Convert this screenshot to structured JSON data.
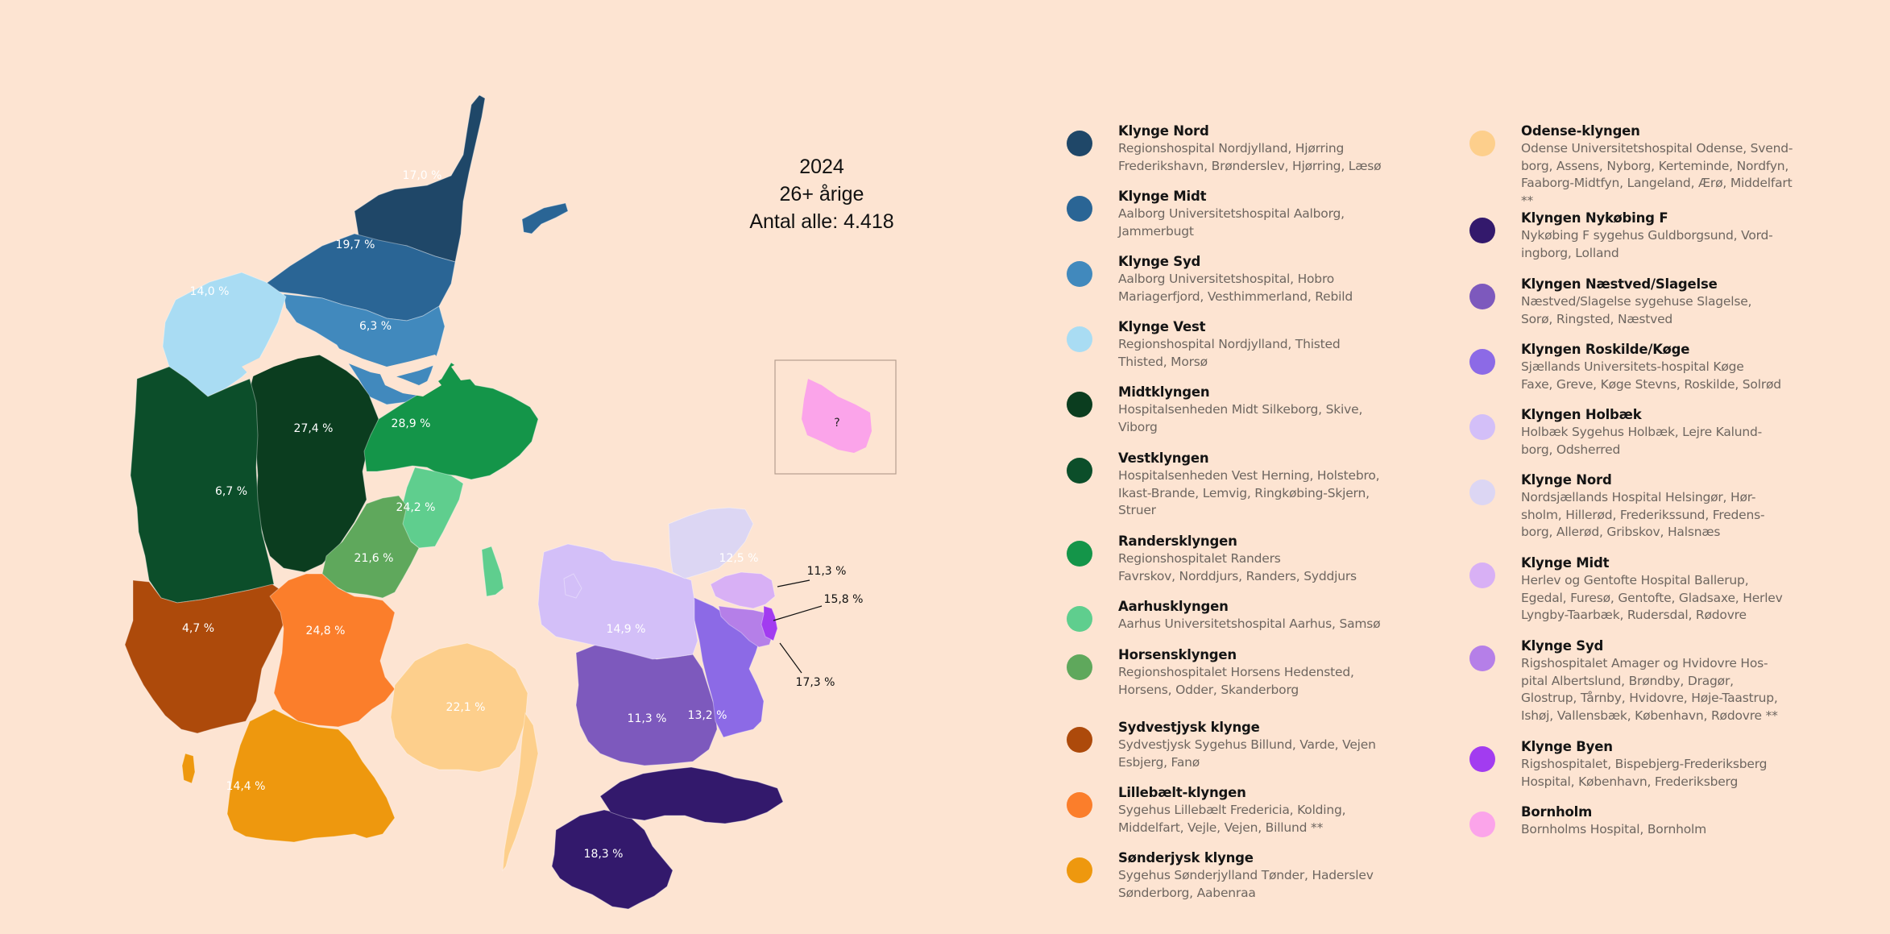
{
  "title": {
    "year": "2024",
    "group": "26+ årige",
    "count": "Antal alle: 4.418"
  },
  "map": {
    "regions": [
      {
        "key": "klynge-nord-jylland",
        "label": "17,0 %",
        "color": "#1f4768"
      },
      {
        "key": "klynge-midt-jylland",
        "label": "19,7 %",
        "color": "#2a6595"
      },
      {
        "key": "klynge-syd-jylland",
        "label": "6,3 %",
        "color": "#4189bd"
      },
      {
        "key": "klynge-vest",
        "label": "14,0 %",
        "color": "#a9dcf3"
      },
      {
        "key": "midtklyngen",
        "label": "27,4 %",
        "color": "#0b3d1f"
      },
      {
        "key": "vestklyngen",
        "label": "6,7 %",
        "color": "#0c4e2a"
      },
      {
        "key": "randersklyngen",
        "label": "28,9 %",
        "color": "#149549"
      },
      {
        "key": "aarhusklyngen",
        "label": "24,2 %",
        "color": "#5fce8e"
      },
      {
        "key": "horsensklyngen",
        "label": "21,6 %",
        "color": "#5fa85c"
      },
      {
        "key": "sydvestjysk",
        "label": "4,7 %",
        "color": "#ad4a0b"
      },
      {
        "key": "lillebaelt",
        "label": "24,8 %",
        "color": "#fb7e2b"
      },
      {
        "key": "sonderjysk",
        "label": "14,4 %",
        "color": "#ee980e"
      },
      {
        "key": "odense",
        "label": "22,1 %",
        "color": "#fdcf8c"
      },
      {
        "key": "nykobing",
        "label": "18,3 %",
        "color": "#33196c"
      },
      {
        "key": "naestved-slagelse",
        "label": "11,3 %",
        "color": "#7d59bd"
      },
      {
        "key": "roskilde-koge",
        "label": "13,2 %",
        "color": "#8c6ae6"
      },
      {
        "key": "holbaek",
        "label": "14,9 %",
        "color": "#d3bff8"
      },
      {
        "key": "klynge-nord-sjaelland",
        "label": "12,5 %",
        "color": "#dcd6f3"
      },
      {
        "key": "klynge-midt-sjaelland",
        "label": "11,3 %",
        "color": "#d8b0f5"
      },
      {
        "key": "klynge-syd-sjaelland",
        "label": "17,3 %",
        "color": "#b57fe8"
      },
      {
        "key": "klynge-byen",
        "label": "15,8 %",
        "color": "#a23cf0"
      }
    ],
    "bornholm": {
      "label": "?",
      "color": "#fba4ea"
    }
  },
  "legend": {
    "left": [
      {
        "name": "Klynge Nord",
        "color": "#1f4768",
        "description": "Regionshospital Nordjylland, Hjørring\nFrederikshavn, Brønderslev, Hjørring, Læsø"
      },
      {
        "name": "Klynge Midt",
        "color": "#2a6595",
        "description": "Aalborg Universitetshospital Aalborg,\nJammerbugt"
      },
      {
        "name": "Klynge Syd",
        "color": "#4189bd",
        "description": "Aalborg Universitetshospital, Hobro\nMariagerfjord, Vesthimmerland, Rebild"
      },
      {
        "name": "Klynge Vest",
        "color": "#a9dcf3",
        "description": "Regionshospital Nordjylland, Thisted\nThisted, Morsø"
      },
      {
        "name": "Midtklyngen",
        "color": "#0b3d1f",
        "description": "Hospitalsenheden Midt Silkeborg, Skive,\nViborg"
      },
      {
        "name": "Vestklyngen",
        "color": "#0c4e2a",
        "description": "Hospitalsenheden Vest Herning, Holstebro,\nIkast-Brande, Lemvig, Ringkøbing-Skjern,\nStruer"
      },
      {
        "name": "Randersklyngen",
        "color": "#149549",
        "description": "Regionshospitalet Randers\nFavrskov, Norddjurs, Randers, Syddjurs"
      },
      {
        "name": "Aarhusklyngen",
        "color": "#5fce8e",
        "description": "Aarhus Universitetshospital Aarhus, Samsø"
      },
      {
        "name": "Horsensklyngen",
        "color": "#5fa85c",
        "description": "Regionshospitalet Horsens Hedensted,\nHorsens, Odder, Skanderborg"
      },
      {
        "name": "Sydvestjysk klynge",
        "color": "#ad4a0b",
        "description": "Sydvestjysk Sygehus Billund, Varde, Vejen\nEsbjerg, Fanø"
      },
      {
        "name": "Lillebælt-klyngen",
        "color": "#fb7e2b",
        "description": "Sygehus Lillebælt Fredericia, Kolding,\nMiddelfart, Vejle, Vejen, Billund **"
      },
      {
        "name": "Sønderjysk klynge",
        "color": "#ee980e",
        "description": "Sygehus Sønderjylland Tønder, Haderslev\nSønderborg, Aabenraa"
      }
    ],
    "right": [
      {
        "name": "Odense-klyngen",
        "color": "#fdcf8c",
        "description": "Odense Universitetshospital Odense, Svend-\nborg, Assens, Nyborg, Kerteminde, Nordfyn,\nFaaborg-Midtfyn, Langeland, Ærø, Middelfart **"
      },
      {
        "name": "Klyngen Nykøbing F",
        "color": "#33196c",
        "description": "Nykøbing F sygehus Guldborgsund, Vord-\ningborg, Lolland"
      },
      {
        "name": "Klyngen Næstved/Slagelse",
        "color": "#7d59bd",
        "description": "Næstved/Slagelse sygehuse Slagelse,\nSorø, Ringsted, Næstved"
      },
      {
        "name": "Klyngen Roskilde/Køge",
        "color": "#8c6ae6",
        "description": "Sjællands Universitets-hospital Køge\nFaxe, Greve, Køge Stevns, Roskilde, Solrød"
      },
      {
        "name": "Klyngen Holbæk",
        "color": "#d3bff8",
        "description": "Holbæk Sygehus Holbæk, Lejre Kalund-\nborg, Odsherred"
      },
      {
        "name": "Klynge Nord",
        "color": "#dcd6f3",
        "description": "Nordsjællands Hospital Helsingør, Hør-\nsholm, Hillerød, Frederikssund, Fredens-\nborg, Allerød, Gribskov, Halsnæs"
      },
      {
        "name": "Klynge Midt",
        "color": "#d8b0f5",
        "description": "Herlev og Gentofte Hospital Ballerup,\nEgedal, Furesø, Gentofte, Gladsaxe, Herlev\nLyngby-Taarbæk, Rudersdal, Rødovre"
      },
      {
        "name": "Klynge Syd",
        "color": "#b57fe8",
        "description": "Rigshospitalet Amager og Hvidovre Hos-\npital Albertslund, Brøndby, Dragør,\nGlostrup, Tårnby, Hvidovre, Høje-Taastrup,\nIshøj, Vallensbæk, København, Rødovre **"
      },
      {
        "name": "Klynge Byen",
        "color": "#a23cf0",
        "description": "Rigshospitalet, Bispebjerg-Frederiksberg\nHospital, København, Frederiksberg"
      },
      {
        "name": "Bornholm",
        "color": "#fba4ea",
        "description": "Bornholms Hospital, Bornholm"
      }
    ]
  }
}
